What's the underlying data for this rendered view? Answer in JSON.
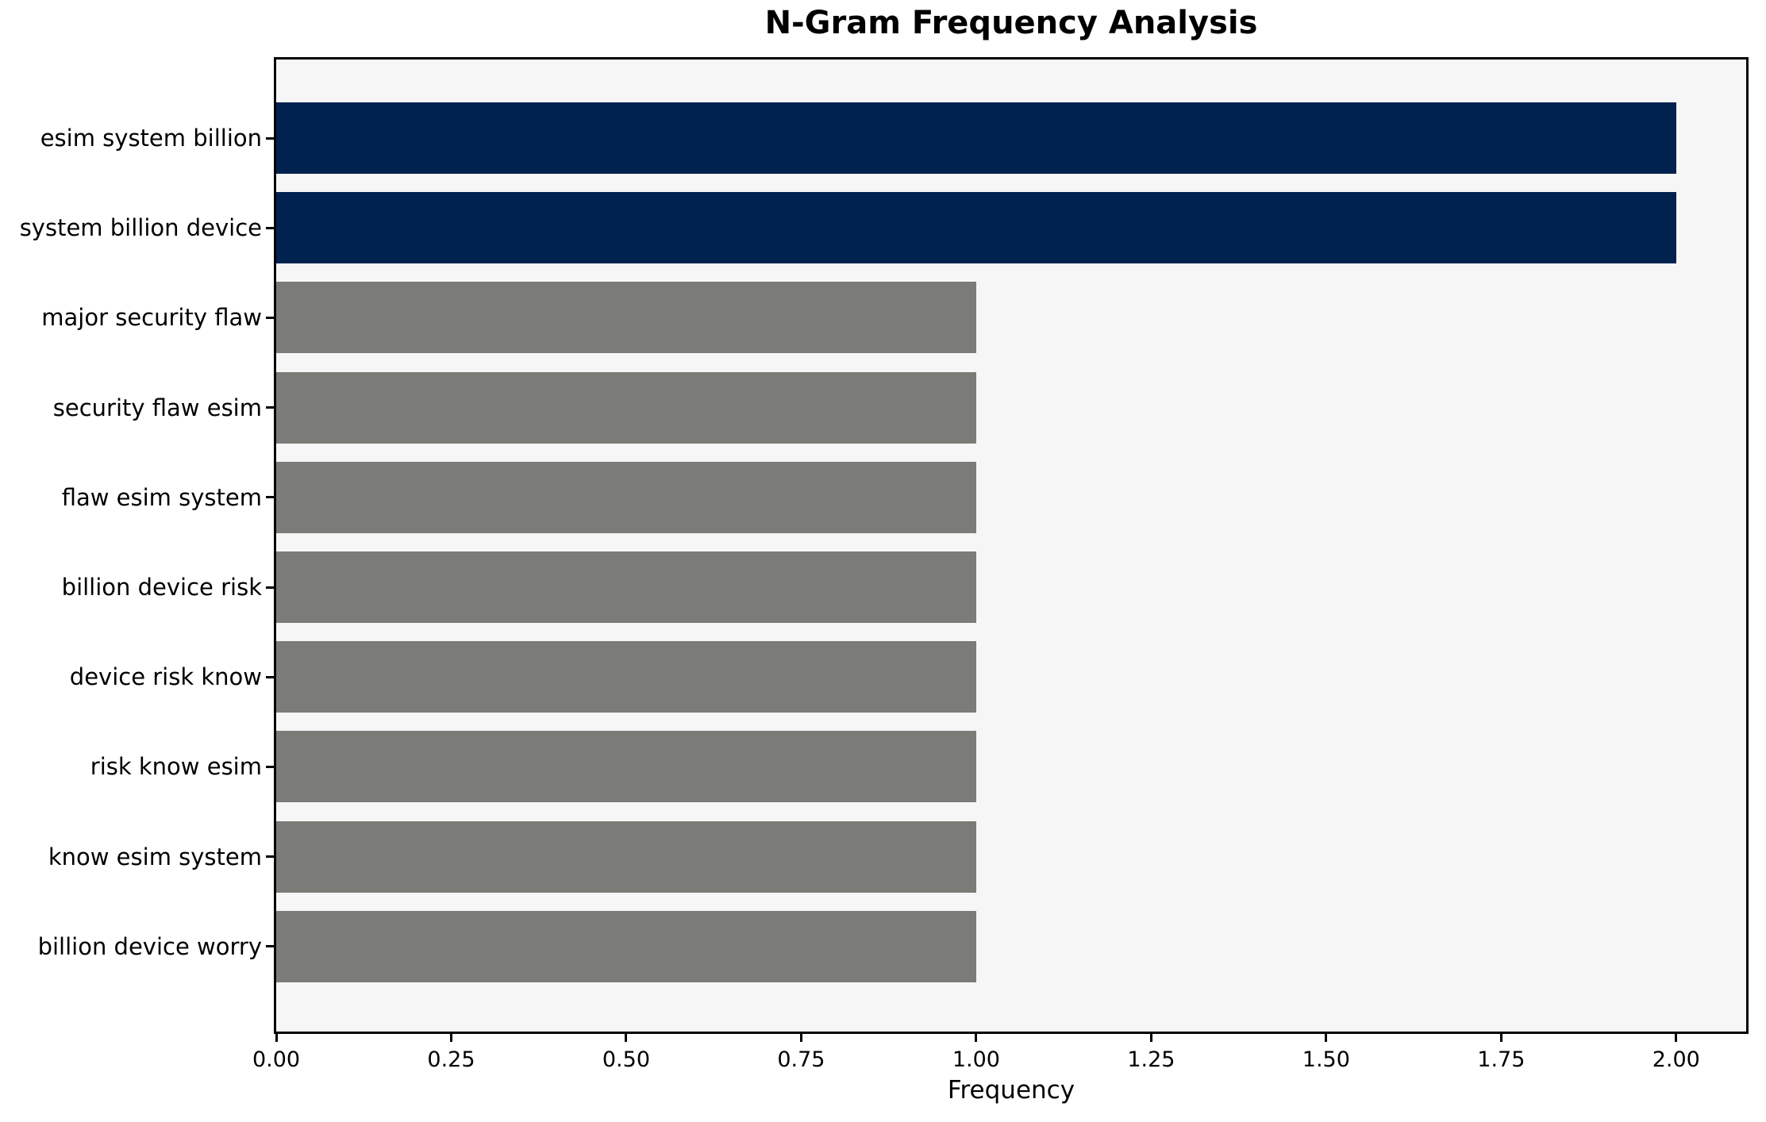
{
  "chart_data": {
    "type": "bar",
    "orientation": "horizontal",
    "title": "N-Gram Frequency Analysis",
    "xlabel": "Frequency",
    "ylabel": "",
    "categories": [
      "esim system billion",
      "system billion device",
      "major security flaw",
      "security flaw esim",
      "flaw esim system",
      "billion device risk",
      "device risk know",
      "risk know esim",
      "know esim system",
      "billion device worry"
    ],
    "values": [
      2,
      2,
      1,
      1,
      1,
      1,
      1,
      1,
      1,
      1
    ],
    "bar_color_keys": [
      "highlight",
      "highlight",
      "default",
      "default",
      "default",
      "default",
      "default",
      "default",
      "default",
      "default"
    ],
    "x_tick_labels": [
      "0.00",
      "0.25",
      "0.50",
      "0.75",
      "1.00",
      "1.25",
      "1.50",
      "1.75",
      "2.00"
    ],
    "xlim": [
      0,
      2.1
    ],
    "grid": false,
    "legend": null,
    "colors": {
      "highlight": "#00224e",
      "default": "#7b7b78",
      "plot_background": "#f6f6f6",
      "figure_background": "#ffffff",
      "spine": "#000000",
      "text": "#000000"
    }
  }
}
